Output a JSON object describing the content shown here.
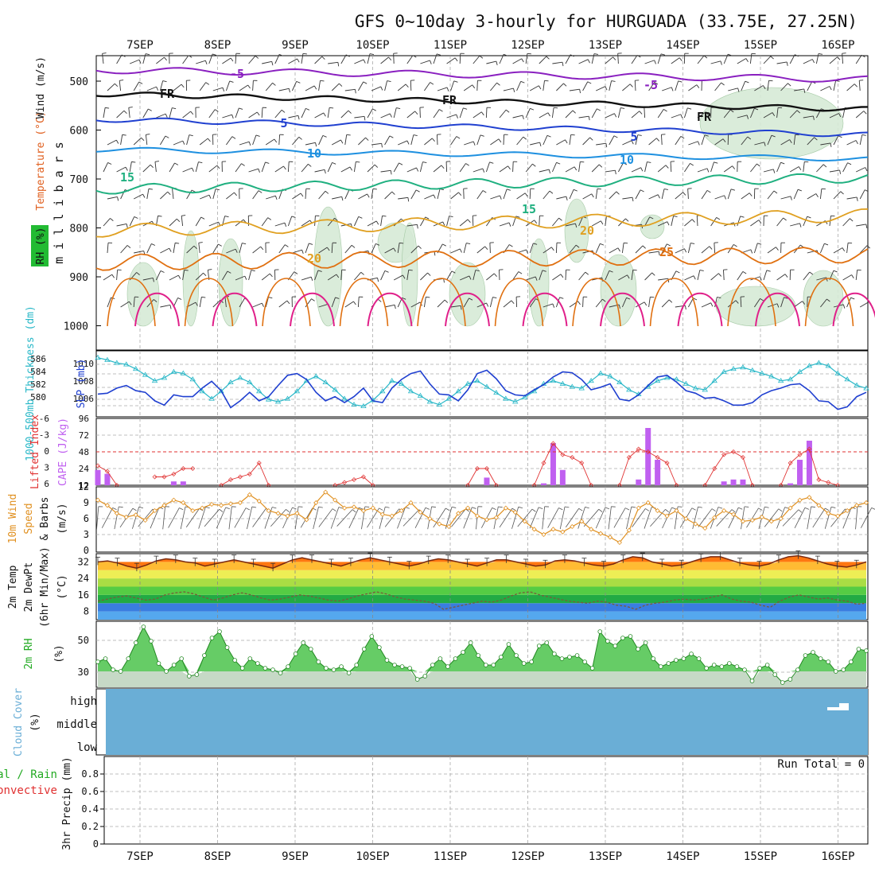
{
  "title": "GFS 0~10day 3-hourly for HURGUADA (33.75E, 27.25N)",
  "date_labels": [
    "7SEP",
    "8SEP",
    "9SEP",
    "10SEP",
    "11SEP",
    "12SEP",
    "13SEP",
    "14SEP",
    "15SEP",
    "16SEP"
  ],
  "colors": {
    "grid": "#aaaaaa",
    "slp": "#1f3fd0",
    "thickness": "#2ab8c8",
    "cape": "#c060f0",
    "lifted": "#e03030",
    "wind_speed": "#e09020",
    "barb": "#222222",
    "rh_fill": "#66cc66",
    "rh_line": "#228822",
    "cloud": "#6aaed6",
    "temp_purple": "#8a20c0",
    "temp_blue": "#2040d0",
    "temp_sky": "#1e90e0",
    "temp_green": "#20b080",
    "temp_orange": "#e0a020",
    "temp_dark_orange": "#e07010",
    "temp_magenta": "#e0208a",
    "freezing": "#111111"
  },
  "panels": {
    "upper": {
      "ylabel": "m i l l i b a r s",
      "side_label_rh": "RH (%)",
      "side_label_temp": "Temperature (°C)",
      "side_label_wind": "Wind (m/s)",
      "yticks": [
        "500",
        "600",
        "700",
        "800",
        "900",
        "1000"
      ],
      "contour_labels": [
        "-5",
        "-5",
        "FR",
        "FR",
        "FR",
        "5",
        "5",
        "10",
        "10",
        "15",
        "15",
        "20",
        "20",
        "25"
      ]
    },
    "pressure": {
      "left_label": "1000-500mb Thickness (dm)",
      "right_label": "SLP (mb)",
      "thickness_ticks": [
        "586",
        "584",
        "582",
        "580"
      ],
      "slp_ticks": [
        "1010",
        "1008",
        "1006"
      ]
    },
    "cape": {
      "left_label": "Lifted Index",
      "right_label": "CAPE (J/kg)",
      "li_ticks": [
        "-6",
        "-3",
        "0",
        "3",
        "6"
      ],
      "cape_ticks": [
        "96",
        "72",
        "48",
        "24",
        "12"
      ]
    },
    "wind": {
      "label1": "10m Wind",
      "label2": "Speed",
      "label3": "& Barbs",
      "unit": "(m/s)",
      "yticks": [
        "12",
        "9",
        "6",
        "3",
        "0"
      ]
    },
    "temp": {
      "label1": "2m Temp",
      "label2": "2m DewPt",
      "label3": "(6hr Min/Max)",
      "unit": "(°C)",
      "yticks": [
        "32",
        "24",
        "16",
        "8"
      ]
    },
    "rh": {
      "label": "2m RH",
      "unit": "(%)",
      "yticks": [
        "50",
        "30"
      ]
    },
    "cloud": {
      "label": "Cloud Cover",
      "unit": "(%)",
      "levels": [
        "high",
        "middle",
        "low"
      ]
    },
    "precip": {
      "label1": "Total / Rain",
      "label2": "Convective",
      "ylabel": "3hr Precip (mm)",
      "yticks": [
        "0.8",
        "0.6",
        "0.4",
        "0.2",
        "0"
      ],
      "run_total": "Run Total = 0"
    }
  },
  "chart_data": [
    {
      "type": "line",
      "title": "1000-500mb Thickness & SLP",
      "series": [
        {
          "name": "SLP (mb)",
          "values": [
            1006.8,
            1006.9,
            1007.5,
            1007.8,
            1007.2,
            1007.0,
            1006.0,
            1005.5,
            1006.7,
            1006.5,
            1006.5,
            1007.5,
            1008.3,
            1007.2,
            1005.2,
            1006.0,
            1007.0,
            1006.0,
            1006.5,
            1007.8,
            1009.0,
            1009.2,
            1008.5,
            1007.0,
            1006.0,
            1006.5,
            1005.8,
            1006.5,
            1007.5,
            1006.0,
            1005.8,
            1007.5,
            1008.5,
            1009.2,
            1009.5,
            1008.0,
            1006.8,
            1006.7,
            1006.0,
            1007.3,
            1009.2,
            1009.6,
            1008.6,
            1007.2,
            1006.7,
            1006.6,
            1007.3,
            1007.9,
            1008.8,
            1009.4,
            1009.3,
            1008.5,
            1007.3,
            1007.6,
            1008.0,
            1006.2,
            1006.0,
            1006.7,
            1007.8,
            1008.8,
            1009.0,
            1008.2,
            1007.2,
            1006.9,
            1006.3,
            1006.4,
            1006.0,
            1005.5,
            1005.5,
            1005.8,
            1006.7,
            1007.2,
            1007.5,
            1007.9,
            1008.0,
            1007.2,
            1006.0,
            1005.9,
            1005.0,
            1005.3,
            1006.5,
            1007.0
          ]
        },
        {
          "name": "1000-500mb Thickness (dm)",
          "values": [
            586.5,
            586.2,
            585.8,
            585.6,
            585.0,
            584.2,
            583.4,
            583.8,
            584.6,
            584.4,
            583.6,
            582.0,
            581.0,
            582.0,
            583.2,
            583.8,
            583.2,
            582.0,
            580.9,
            580.6,
            581.0,
            582.0,
            583.4,
            584.0,
            583.2,
            582.2,
            581.0,
            580.2,
            580.0,
            580.8,
            582.0,
            583.4,
            583.0,
            582.0,
            581.4,
            580.6,
            580.2,
            581.0,
            582.0,
            583.0,
            583.4,
            582.6,
            581.8,
            581.0,
            580.6,
            581.2,
            582.0,
            583.0,
            583.4,
            583.0,
            582.6,
            582.4,
            583.4,
            584.4,
            584.0,
            583.2,
            582.2,
            581.6,
            582.6,
            583.4,
            583.8,
            583.6,
            583.0,
            582.4,
            582.2,
            583.4,
            584.6,
            585.0,
            585.2,
            584.8,
            584.4,
            584.0,
            583.4,
            583.6,
            584.6,
            585.4,
            585.8,
            585.4,
            584.4,
            583.6,
            582.8,
            582.4
          ]
        }
      ],
      "ylim_slp": [
        1004.5,
        1011.5
      ],
      "ylim_thickness": [
        579,
        587
      ]
    },
    {
      "type": "bar",
      "title": "CAPE & Lifted Index",
      "cape_bars": [
        {
          "t": 0,
          "value": 24
        },
        {
          "t": 1,
          "value": 18
        },
        {
          "t": 8,
          "value": 6
        },
        {
          "t": 9,
          "value": 6
        },
        {
          "t": 41,
          "value": 12
        },
        {
          "t": 47,
          "value": 3
        },
        {
          "t": 48,
          "value": 66
        },
        {
          "t": 49,
          "value": 24
        },
        {
          "t": 57,
          "value": 9
        },
        {
          "t": 58,
          "value": 90
        },
        {
          "t": 59,
          "value": 40
        },
        {
          "t": 66,
          "value": 6
        },
        {
          "t": 67,
          "value": 9
        },
        {
          "t": 68,
          "value": 9
        },
        {
          "t": 73,
          "value": 3
        },
        {
          "t": 74,
          "value": 40
        },
        {
          "t": 75,
          "value": 70
        }
      ],
      "lifted_index": [
        {
          "t": 0,
          "value": 2.5
        },
        {
          "t": 1,
          "value": 3.5
        },
        {
          "t": 2,
          "value": 6
        },
        {
          "t": 6,
          "value": 4.5
        },
        {
          "t": 7,
          "value": 4.5
        },
        {
          "t": 8,
          "value": 4
        },
        {
          "t": 9,
          "value": 3
        },
        {
          "t": 10,
          "value": 3
        },
        {
          "t": 13,
          "value": 6
        },
        {
          "t": 14,
          "value": 5
        },
        {
          "t": 15,
          "value": 4.5
        },
        {
          "t": 16,
          "value": 4
        },
        {
          "t": 17,
          "value": 2
        },
        {
          "t": 18,
          "value": 6
        },
        {
          "t": 25,
          "value": 6
        },
        {
          "t": 26,
          "value": 5.5
        },
        {
          "t": 27,
          "value": 5
        },
        {
          "t": 28,
          "value": 4.5
        },
        {
          "t": 29,
          "value": 6
        },
        {
          "t": 39,
          "value": 6
        },
        {
          "t": 40,
          "value": 3
        },
        {
          "t": 41,
          "value": 3
        },
        {
          "t": 42,
          "value": 6
        },
        {
          "t": 46,
          "value": 6
        },
        {
          "t": 47,
          "value": 2
        },
        {
          "t": 48,
          "value": -1.5
        },
        {
          "t": 49,
          "value": 0.5
        },
        {
          "t": 50,
          "value": 1
        },
        {
          "t": 51,
          "value": 2
        },
        {
          "t": 52,
          "value": 6
        },
        {
          "t": 55,
          "value": 6
        },
        {
          "t": 56,
          "value": 1
        },
        {
          "t": 57,
          "value": -0.5
        },
        {
          "t": 58,
          "value": 0
        },
        {
          "t": 59,
          "value": 1
        },
        {
          "t": 60,
          "value": 2
        },
        {
          "t": 61,
          "value": 6
        },
        {
          "t": 64,
          "value": 6
        },
        {
          "t": 65,
          "value": 3
        },
        {
          "t": 66,
          "value": 0.5
        },
        {
          "t": 67,
          "value": 0
        },
        {
          "t": 68,
          "value": 1
        },
        {
          "t": 69,
          "value": 6
        },
        {
          "t": 72,
          "value": 6
        },
        {
          "t": 73,
          "value": 2
        },
        {
          "t": 74,
          "value": 0.5
        },
        {
          "t": 75,
          "value": -0.5
        },
        {
          "t": 76,
          "value": 5
        },
        {
          "t": 77,
          "value": 5.5
        },
        {
          "t": 78,
          "value": 6
        }
      ]
    },
    {
      "type": "line",
      "title": "10m Wind Speed",
      "values": [
        9.5,
        8.5,
        7.0,
        6.3,
        6.7,
        5.7,
        7.5,
        8.5,
        9.5,
        9.0,
        7.5,
        8.0,
        8.7,
        8.5,
        8.8,
        9.0,
        10.5,
        9.3,
        7.5,
        7.0,
        6.5,
        7.0,
        5.8,
        9.0,
        11.0,
        9.5,
        8.0,
        8.2,
        7.5,
        8.0,
        6.8,
        6.5,
        7.5,
        9.0,
        7.2,
        6.0,
        5.0,
        4.5,
        7.0,
        8.0,
        6.5,
        5.8,
        6.2,
        8.0,
        7.2,
        5.5,
        4.0,
        3.0,
        4.0,
        3.5,
        4.5,
        5.5,
        4.0,
        3.2,
        2.5,
        1.5,
        3.8,
        8.0,
        9.0,
        7.5,
        6.5,
        7.5,
        6.0,
        5.0,
        4.2,
        6.2,
        7.5,
        6.8,
        5.5,
        5.7,
        6.3,
        5.5,
        6.0,
        8.0,
        9.5,
        10.0,
        8.5,
        7.0,
        6.5,
        7.5,
        8.5,
        9.0
      ]
    },
    {
      "type": "line",
      "title": "2m Temp & DewPt",
      "series": [
        {
          "name": "2m Temp",
          "values": [
            32,
            32.5,
            31.5,
            30,
            29,
            30.5,
            32.5,
            33.5,
            33,
            32,
            31.5,
            30,
            31,
            32,
            33,
            32,
            31,
            30,
            29,
            31,
            33,
            34,
            33,
            32,
            31,
            30,
            31.5,
            33,
            34,
            33,
            32,
            31,
            30,
            31,
            32.5,
            33.5,
            33,
            32,
            31,
            30,
            31.5,
            33,
            33,
            32,
            31,
            30,
            30.5,
            32.5,
            33,
            32.5,
            31.5,
            30.5,
            30,
            31,
            33,
            34.5,
            34,
            32,
            31,
            30,
            30.5,
            32,
            33.5,
            34.5,
            34.5,
            33,
            31.5,
            30.5,
            30,
            31,
            33,
            34.5,
            35,
            34,
            32.5,
            31,
            30,
            29.5,
            30.5,
            32
          ]
        },
        {
          "name": "2m DewPt",
          "values": [
            13,
            14,
            15,
            15.5,
            14.5,
            13.5,
            14,
            16,
            17,
            17.5,
            16.5,
            15,
            13.5,
            14.5,
            16,
            17,
            16,
            14.5,
            13.5,
            14,
            15,
            16,
            15.5,
            14.5,
            13.5,
            13,
            14,
            15.5,
            16.5,
            17.5,
            16.5,
            15,
            14,
            13.5,
            13,
            12,
            9,
            10,
            11,
            12,
            13,
            12.5,
            13.5,
            15.5,
            17,
            17.5,
            16,
            15,
            14,
            13,
            12.5,
            12,
            13,
            12.5,
            11,
            10.5,
            9,
            11,
            12,
            12.5,
            13.5,
            14,
            13.5,
            14,
            15,
            16,
            14,
            13,
            12.5,
            11,
            10,
            13,
            15,
            16,
            15,
            14,
            14.5,
            13.5,
            13,
            11.5,
            12
          ]
        }
      ],
      "ylim": [
        4,
        36
      ]
    },
    {
      "type": "area",
      "title": "2m RH",
      "values": [
        36,
        38,
        31,
        30,
        38,
        48,
        58,
        49,
        35,
        30,
        34,
        38,
        27,
        28,
        40,
        51,
        55,
        45,
        37,
        32,
        38,
        35,
        32,
        31,
        29,
        33,
        41,
        48,
        44,
        36,
        32,
        31,
        33,
        29,
        34,
        44,
        52,
        45,
        37,
        34,
        33,
        32,
        25,
        27,
        34,
        38,
        33,
        38,
        42,
        48,
        40,
        34,
        34,
        39,
        47,
        40,
        35,
        36,
        46,
        48,
        41,
        38,
        39,
        40,
        36,
        32,
        55,
        49,
        46,
        51,
        52,
        44,
        48,
        38,
        33,
        35,
        37,
        38,
        41,
        38,
        32,
        34,
        33,
        35,
        33,
        31,
        24,
        32,
        34,
        28,
        23,
        25,
        31,
        40,
        42,
        38,
        36,
        30,
        31,
        36,
        44,
        43
      ]
    },
    {
      "type": "area",
      "title": "Cloud Cover",
      "levels": [
        "high",
        "middle",
        "low"
      ],
      "values_percent": {
        "high": 0,
        "middle": 0,
        "low": 0
      }
    },
    {
      "type": "bar",
      "title": "3hr Precip",
      "values": [],
      "ylim": [
        0,
        1
      ]
    }
  ]
}
